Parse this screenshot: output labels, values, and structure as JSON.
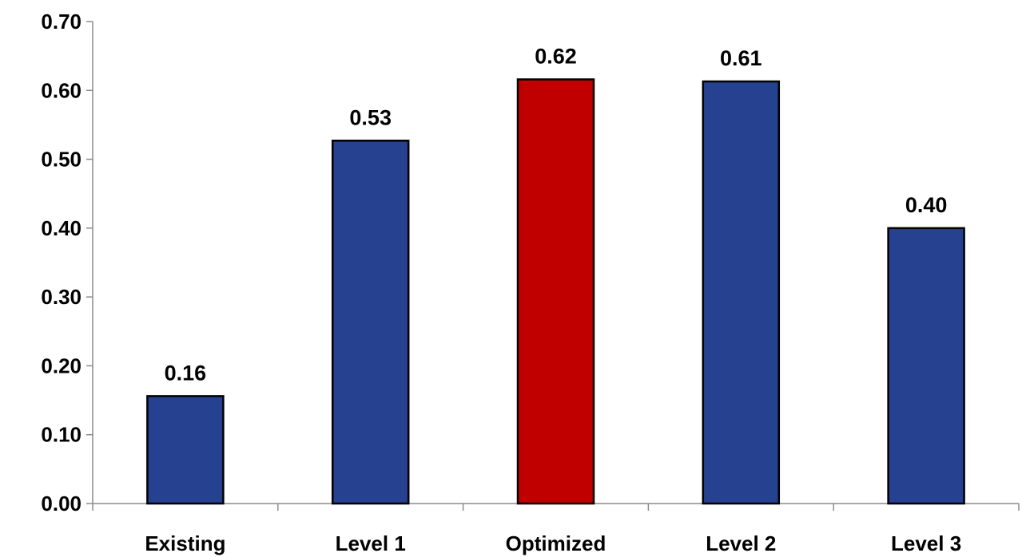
{
  "chart_data": {
    "type": "bar",
    "title": "",
    "xlabel": "",
    "ylabel": "",
    "categories": [
      "Existing",
      "Level 1",
      "Optimized",
      "Level 2",
      "Level 3"
    ],
    "values": [
      0.156,
      0.527,
      0.616,
      0.613,
      0.4
    ],
    "data_labels": [
      "0.16",
      "0.53",
      "0.62",
      "0.61",
      "0.40"
    ],
    "bar_colors": [
      "#26418f",
      "#26418f",
      "#c00000",
      "#26418f",
      "#26418f"
    ],
    "ylim": [
      0,
      0.7
    ],
    "yticks": [
      0.0,
      0.1,
      0.2,
      0.3,
      0.4,
      0.5,
      0.6,
      0.7
    ],
    "ytick_labels": [
      "0.00",
      "0.10",
      "0.20",
      "0.30",
      "0.40",
      "0.50",
      "0.60",
      "0.70"
    ],
    "grid": false,
    "legend": "none"
  }
}
